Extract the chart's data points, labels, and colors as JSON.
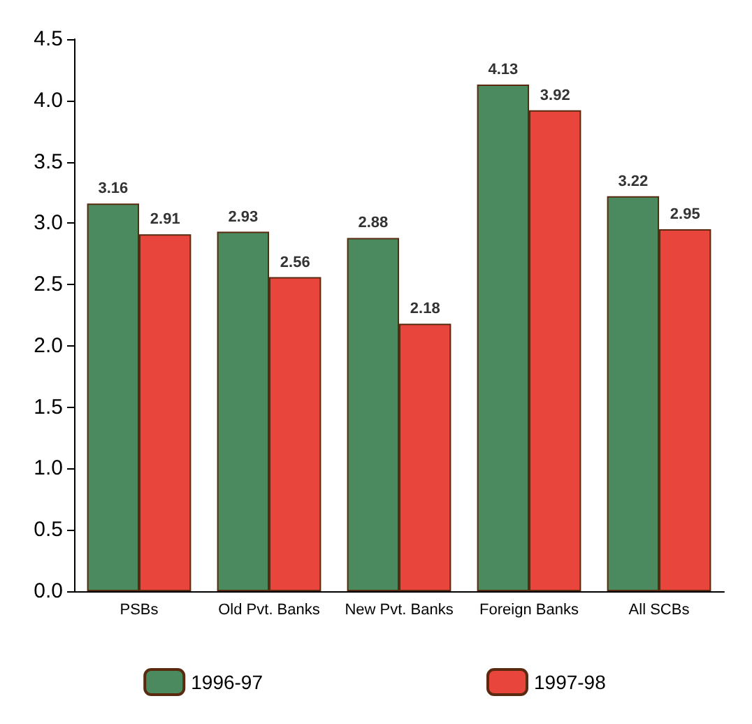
{
  "chart_data": {
    "type": "bar",
    "categories": [
      "PSBs",
      "Old Pvt. Banks",
      "New Pvt. Banks",
      "Foreign Banks",
      "All SCBs"
    ],
    "series": [
      {
        "name": "1996-97",
        "color": "#4a8a5e",
        "values": [
          3.16,
          2.93,
          2.88,
          4.13,
          3.22
        ]
      },
      {
        "name": "1997-98",
        "color": "#e8453c",
        "values": [
          2.91,
          2.56,
          2.18,
          3.92,
          2.95
        ]
      }
    ],
    "ylim": [
      0,
      4.5
    ],
    "yticks": [
      {
        "value": 0,
        "label": "0.0"
      },
      0.5,
      {
        "value": 1,
        "label": "1.0"
      },
      1.5,
      {
        "value": 2,
        "label": "2.0"
      },
      2.5,
      {
        "value": 3,
        "label": "3.0"
      },
      3.5,
      {
        "value": 4,
        "label": "4.0"
      },
      4.5
    ],
    "data_labels": true,
    "grid": false,
    "legend": "bottom"
  }
}
